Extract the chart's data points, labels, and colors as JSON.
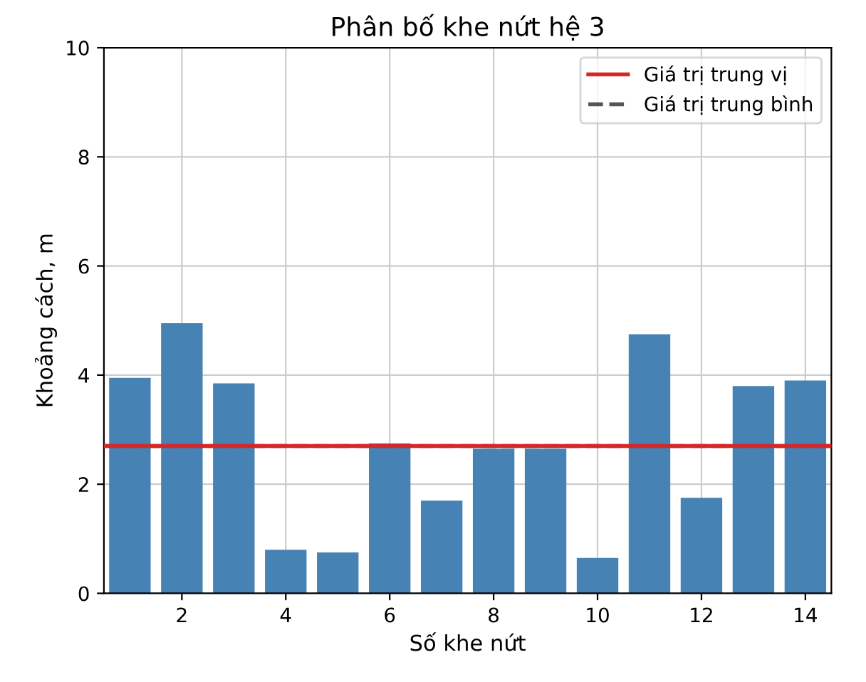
{
  "chart_data": {
    "type": "bar",
    "title": "Phân bố khe nứt hệ 3",
    "xlabel": "Số khe nứt",
    "ylabel": "Khoảng cách, m",
    "x": [
      1,
      2,
      3,
      4,
      5,
      6,
      7,
      8,
      9,
      10,
      11,
      12,
      13,
      14
    ],
    "values": [
      3.95,
      4.95,
      3.85,
      0.8,
      0.75,
      2.75,
      1.7,
      2.65,
      2.65,
      0.65,
      4.75,
      1.75,
      3.8,
      3.9
    ],
    "color": "#4682b4",
    "xlim": [
      0.5,
      14.5
    ],
    "xticks": [
      2,
      4,
      6,
      8,
      10,
      12,
      14
    ],
    "ylim": [
      0,
      10
    ],
    "yticks": [
      0,
      2,
      4,
      6,
      8,
      10
    ],
    "ref_lines": [
      {
        "axis": "y",
        "value": 2.7,
        "label": "Giá trị trung vị",
        "color": "#d62728",
        "line_style": "solid"
      },
      {
        "axis": "y",
        "value": 2.7,
        "label": "Giá trị trung bình",
        "color": "#555555",
        "line_style": "dashed"
      }
    ],
    "grid": true,
    "legend": "top right"
  }
}
